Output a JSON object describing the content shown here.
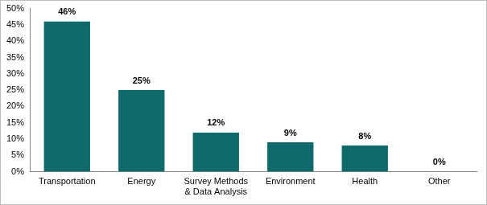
{
  "chart_data": {
    "type": "bar",
    "categories": [
      "Transportation",
      "Energy",
      "Survey Methods & Data Analysis",
      "Environment",
      "Health",
      "Other"
    ],
    "values": [
      46,
      25,
      12,
      9,
      8,
      0
    ],
    "value_labels": [
      "46%",
      "25%",
      "12%",
      "9%",
      "8%",
      "0%"
    ],
    "data_labels": true,
    "color": "#0f6b6b",
    "ylim": [
      0,
      50
    ],
    "yticks": [
      {
        "value": 0,
        "label": "0%"
      },
      {
        "value": 5,
        "label": "5%"
      },
      {
        "value": 10,
        "label": "10%"
      },
      {
        "value": 15,
        "label": "15%"
      },
      {
        "value": 20,
        "label": "20%"
      },
      {
        "value": 25,
        "label": "25%"
      },
      {
        "value": 30,
        "label": "30%"
      },
      {
        "value": 35,
        "label": "35%"
      },
      {
        "value": 40,
        "label": "40%"
      },
      {
        "value": 45,
        "label": "45%"
      },
      {
        "value": 50,
        "label": "50%"
      }
    ],
    "grid": false
  }
}
